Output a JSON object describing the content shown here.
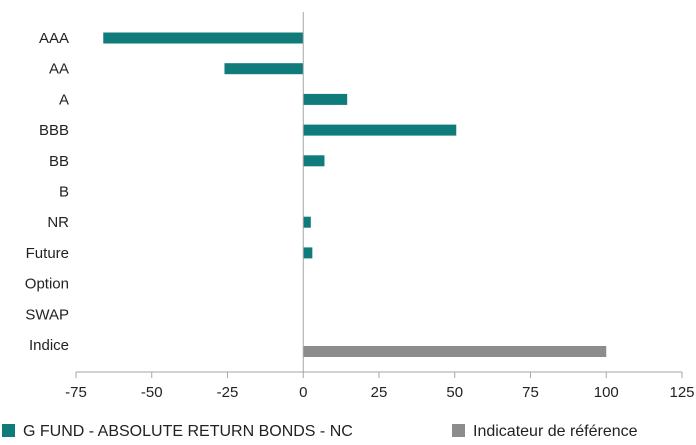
{
  "chart_data": {
    "type": "bar",
    "orientation": "horizontal",
    "categories": [
      "AAA",
      "AA",
      "A",
      "BBB",
      "BB",
      "B",
      "NR",
      "Future",
      "Option",
      "SWAP",
      "Indice"
    ],
    "series": [
      {
        "name": "G FUND - ABSOLUTE RETURN BONDS - NC",
        "color": "#0f7b7b",
        "values": [
          -66,
          -26,
          14.5,
          50.5,
          7,
          0,
          2.5,
          3,
          0,
          0,
          0
        ]
      },
      {
        "name": "Indicateur de référence",
        "color": "#8c8c8c",
        "values": [
          0,
          0,
          0,
          0,
          0,
          0,
          0,
          0,
          0,
          0,
          100
        ]
      }
    ],
    "xlim": [
      -75,
      125
    ],
    "xticks": [
      "-75",
      "-50",
      "-25",
      "0",
      "25",
      "50",
      "75",
      "100",
      "125"
    ],
    "title": "",
    "xlabel": "",
    "ylabel": "",
    "grid": false,
    "legend_position": "bottom"
  },
  "colors": {
    "axis": "#a6a6a6",
    "text": "#222222"
  }
}
